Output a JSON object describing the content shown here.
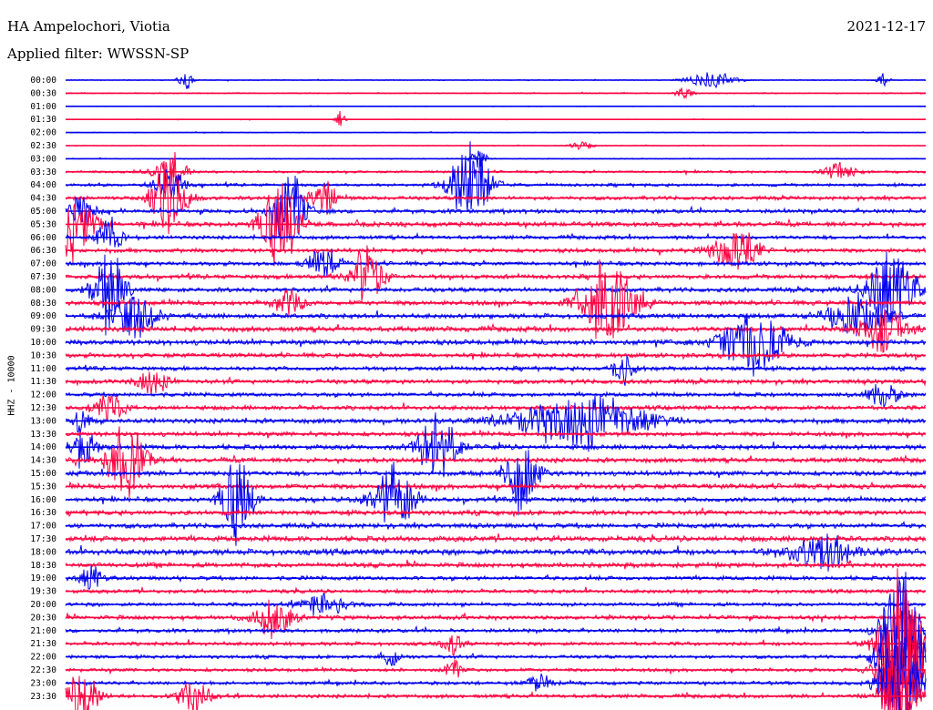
{
  "header": {
    "station": "HA Ampelochori, Viotia",
    "date": "2021-12-17",
    "filter": "Applied filter: WWSSN-SP"
  },
  "chart_data": {
    "type": "line",
    "title": "HA Ampelochori, Viotia",
    "ylabel": "HHZ - 10000",
    "colors": {
      "even": "#0000ee",
      "odd": "#ff0040"
    },
    "rows": [
      {
        "label": "00:00",
        "noise": 0.25,
        "events": [
          [
            0.14,
            10,
            1,
            5
          ],
          [
            0.75,
            30,
            0.6,
            8
          ],
          [
            0.95,
            8,
            1,
            4
          ]
        ]
      },
      {
        "label": "00:30",
        "noise": 0.35,
        "events": [
          [
            0.72,
            12,
            0.8,
            4
          ]
        ]
      },
      {
        "label": "01:00",
        "noise": 0.2,
        "events": []
      },
      {
        "label": "01:30",
        "noise": 0.2,
        "events": [
          [
            0.32,
            6,
            1.2,
            4
          ]
        ]
      },
      {
        "label": "02:00",
        "noise": 0.25,
        "events": []
      },
      {
        "label": "02:30",
        "noise": 0.25,
        "events": [
          [
            0.6,
            15,
            0.5,
            5
          ]
        ]
      },
      {
        "label": "03:00",
        "noise": 0.3,
        "events": [
          [
            0.48,
            10,
            1.5,
            4
          ]
        ]
      },
      {
        "label": "03:30",
        "noise": 0.7,
        "events": [
          [
            0.12,
            20,
            1.3,
            8
          ],
          [
            0.9,
            20,
            0.8,
            6
          ]
        ]
      },
      {
        "label": "04:00",
        "noise": 0.9,
        "events": [
          [
            0.47,
            25,
            3.5,
            8
          ],
          [
            0.12,
            20,
            1.5,
            6
          ]
        ]
      },
      {
        "label": "04:30",
        "noise": 1.1,
        "events": [
          [
            0.12,
            22,
            2.5,
            8
          ],
          [
            0.3,
            20,
            1.5,
            6
          ]
        ]
      },
      {
        "label": "05:00",
        "noise": 1.2,
        "events": [
          [
            0.02,
            15,
            2,
            5
          ],
          [
            0.26,
            20,
            3,
            8
          ]
        ]
      },
      {
        "label": "05:30",
        "noise": 1.4,
        "events": [
          [
            0.01,
            25,
            2.5,
            8
          ],
          [
            0.25,
            25,
            3,
            8
          ]
        ]
      },
      {
        "label": "06:00",
        "noise": 1.1,
        "events": [
          [
            0.05,
            15,
            2,
            6
          ]
        ]
      },
      {
        "label": "06:30",
        "noise": 1.2,
        "events": [
          [
            0.78,
            30,
            1.5,
            8
          ]
        ]
      },
      {
        "label": "07:00",
        "noise": 1.2,
        "events": [
          [
            0.3,
            20,
            1.5,
            6
          ]
        ]
      },
      {
        "label": "07:30",
        "noise": 1.3,
        "events": [
          [
            0.35,
            20,
            2.5,
            8
          ]
        ]
      },
      {
        "label": "08:00",
        "noise": 1.3,
        "events": [
          [
            0.05,
            20,
            3,
            8
          ],
          [
            0.96,
            30,
            3,
            8
          ]
        ]
      },
      {
        "label": "08:30",
        "noise": 1.4,
        "events": [
          [
            0.63,
            35,
            3,
            8
          ],
          [
            0.26,
            20,
            1.5,
            6
          ]
        ]
      },
      {
        "label": "09:00",
        "noise": 1.4,
        "events": [
          [
            0.08,
            30,
            1.5,
            8
          ],
          [
            0.92,
            40,
            1.5,
            8
          ]
        ]
      },
      {
        "label": "09:30",
        "noise": 1.5,
        "events": [
          [
            0.95,
            30,
            1.5,
            8
          ]
        ]
      },
      {
        "label": "10:00",
        "noise": 1.5,
        "events": [
          [
            0.8,
            40,
            2,
            10
          ]
        ]
      },
      {
        "label": "10:30",
        "noise": 1.3,
        "events": []
      },
      {
        "label": "11:00",
        "noise": 1.2,
        "events": [
          [
            0.65,
            15,
            1.5,
            6
          ]
        ]
      },
      {
        "label": "11:30",
        "noise": 1.3,
        "events": [
          [
            0.1,
            20,
            1.3,
            6
          ]
        ]
      },
      {
        "label": "12:00",
        "noise": 1.2,
        "events": [
          [
            0.95,
            20,
            1.2,
            6
          ]
        ]
      },
      {
        "label": "12:30",
        "noise": 1.3,
        "events": [
          [
            0.05,
            20,
            1.3,
            6
          ]
        ]
      },
      {
        "label": "13:00",
        "noise": 1.4,
        "events": [
          [
            0.6,
            80,
            1.6,
            10
          ],
          [
            0.02,
            10,
            2,
            5
          ]
        ]
      },
      {
        "label": "13:30",
        "noise": 1.3,
        "events": []
      },
      {
        "label": "14:00",
        "noise": 1.4,
        "events": [
          [
            0.43,
            25,
            2.5,
            8
          ],
          [
            0.02,
            15,
            2,
            6
          ]
        ]
      },
      {
        "label": "14:30",
        "noise": 1.4,
        "events": [
          [
            0.07,
            25,
            2.5,
            8
          ]
        ]
      },
      {
        "label": "15:00",
        "noise": 1.4,
        "events": [
          [
            0.53,
            20,
            3,
            8
          ]
        ]
      },
      {
        "label": "15:30",
        "noise": 1.5,
        "events": []
      },
      {
        "label": "16:00",
        "noise": 1.4,
        "events": [
          [
            0.2,
            20,
            3,
            8
          ],
          [
            0.38,
            25,
            2.5,
            8
          ]
        ]
      },
      {
        "label": "16:30",
        "noise": 1.4,
        "events": []
      },
      {
        "label": "17:00",
        "noise": 1.4,
        "events": []
      },
      {
        "label": "17:30",
        "noise": 1.6,
        "events": []
      },
      {
        "label": "18:00",
        "noise": 1.7,
        "events": [
          [
            0.88,
            40,
            1.3,
            8
          ]
        ]
      },
      {
        "label": "18:30",
        "noise": 1.4,
        "events": []
      },
      {
        "label": "19:00",
        "noise": 1.2,
        "events": [
          [
            0.03,
            12,
            1.5,
            6
          ]
        ]
      },
      {
        "label": "19:30",
        "noise": 1.1,
        "events": []
      },
      {
        "label": "20:00",
        "noise": 1.1,
        "events": [
          [
            0.3,
            30,
            1,
            6
          ]
        ]
      },
      {
        "label": "20:30",
        "noise": 1.2,
        "events": [
          [
            0.24,
            25,
            1.4,
            8
          ]
        ]
      },
      {
        "label": "21:00",
        "noise": 1.1,
        "events": [
          [
            0.97,
            25,
            3,
            10
          ]
        ]
      },
      {
        "label": "21:30",
        "noise": 1.1,
        "events": [
          [
            0.97,
            25,
            5,
            10
          ],
          [
            0.45,
            12,
            1.2,
            6
          ]
        ]
      },
      {
        "label": "22:00",
        "noise": 1.0,
        "events": [
          [
            0.97,
            25,
            5,
            10
          ],
          [
            0.38,
            10,
            1.2,
            5
          ]
        ]
      },
      {
        "label": "22:30",
        "noise": 1.0,
        "events": [
          [
            0.97,
            25,
            5,
            10
          ],
          [
            0.45,
            10,
            1.2,
            5
          ]
        ]
      },
      {
        "label": "23:00",
        "noise": 1.0,
        "events": [
          [
            0.97,
            25,
            4,
            10
          ],
          [
            0.55,
            15,
            1,
            6
          ]
        ]
      },
      {
        "label": "23:30",
        "noise": 1.1,
        "events": [
          [
            0.02,
            20,
            2,
            8
          ],
          [
            0.15,
            20,
            1.5,
            6
          ],
          [
            0.97,
            25,
            2,
            10
          ]
        ]
      }
    ]
  }
}
